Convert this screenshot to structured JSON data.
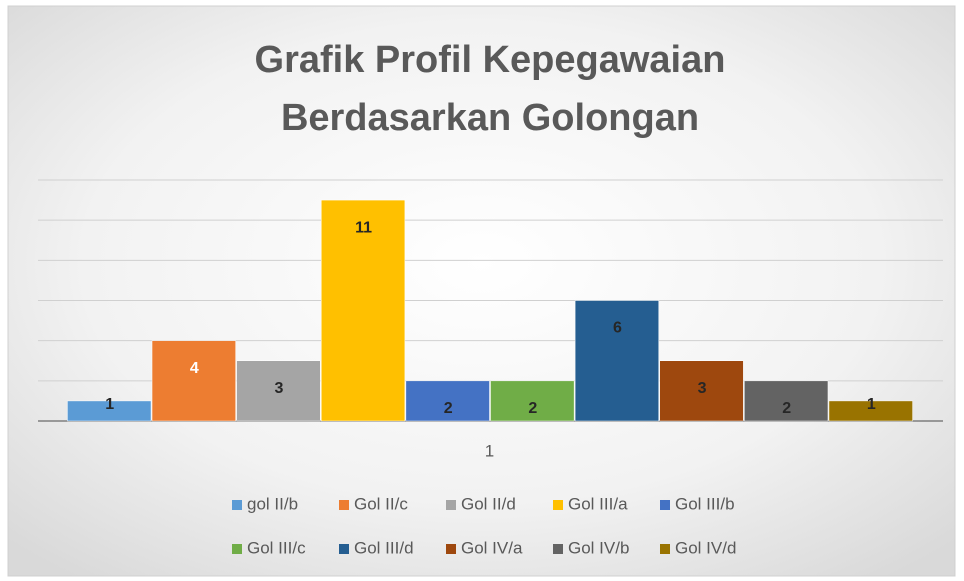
{
  "chart_data": {
    "type": "bar",
    "title": [
      "Grafik Profil Kepegawaian",
      "Berdasarkan Golongan"
    ],
    "categories": [
      "1"
    ],
    "series": [
      {
        "name": "gol II/b",
        "color": "#5b9bd5",
        "values": [
          1
        ]
      },
      {
        "name": "Gol II/c",
        "color": "#ed7d31",
        "values": [
          4
        ]
      },
      {
        "name": "Gol II/d",
        "color": "#a5a5a5",
        "values": [
          3
        ]
      },
      {
        "name": "Gol III/a",
        "color": "#ffc000",
        "values": [
          11
        ]
      },
      {
        "name": "Gol III/b",
        "color": "#4472c4",
        "values": [
          2
        ]
      },
      {
        "name": "Gol III/c",
        "color": "#70ad47",
        "values": [
          2
        ]
      },
      {
        "name": "Gol III/d",
        "color": "#255e91",
        "values": [
          6
        ]
      },
      {
        "name": "Gol IV/a",
        "color": "#9e480e",
        "values": [
          3
        ]
      },
      {
        "name": "Gol IV/b",
        "color": "#636363",
        "values": [
          2
        ]
      },
      {
        "name": "Gol IV/d",
        "color": "#997300",
        "values": [
          1
        ]
      }
    ],
    "value_label_colors": [
      "#262626",
      "#ffffff",
      "#262626",
      "#262626",
      "#262626",
      "#262626",
      "#262626",
      "#262626",
      "#262626",
      "#262626"
    ],
    "ylim": [
      0,
      12
    ],
    "yticks": [
      0,
      2,
      4,
      6,
      8,
      10,
      12
    ],
    "grid": true,
    "legend": "bottom"
  }
}
